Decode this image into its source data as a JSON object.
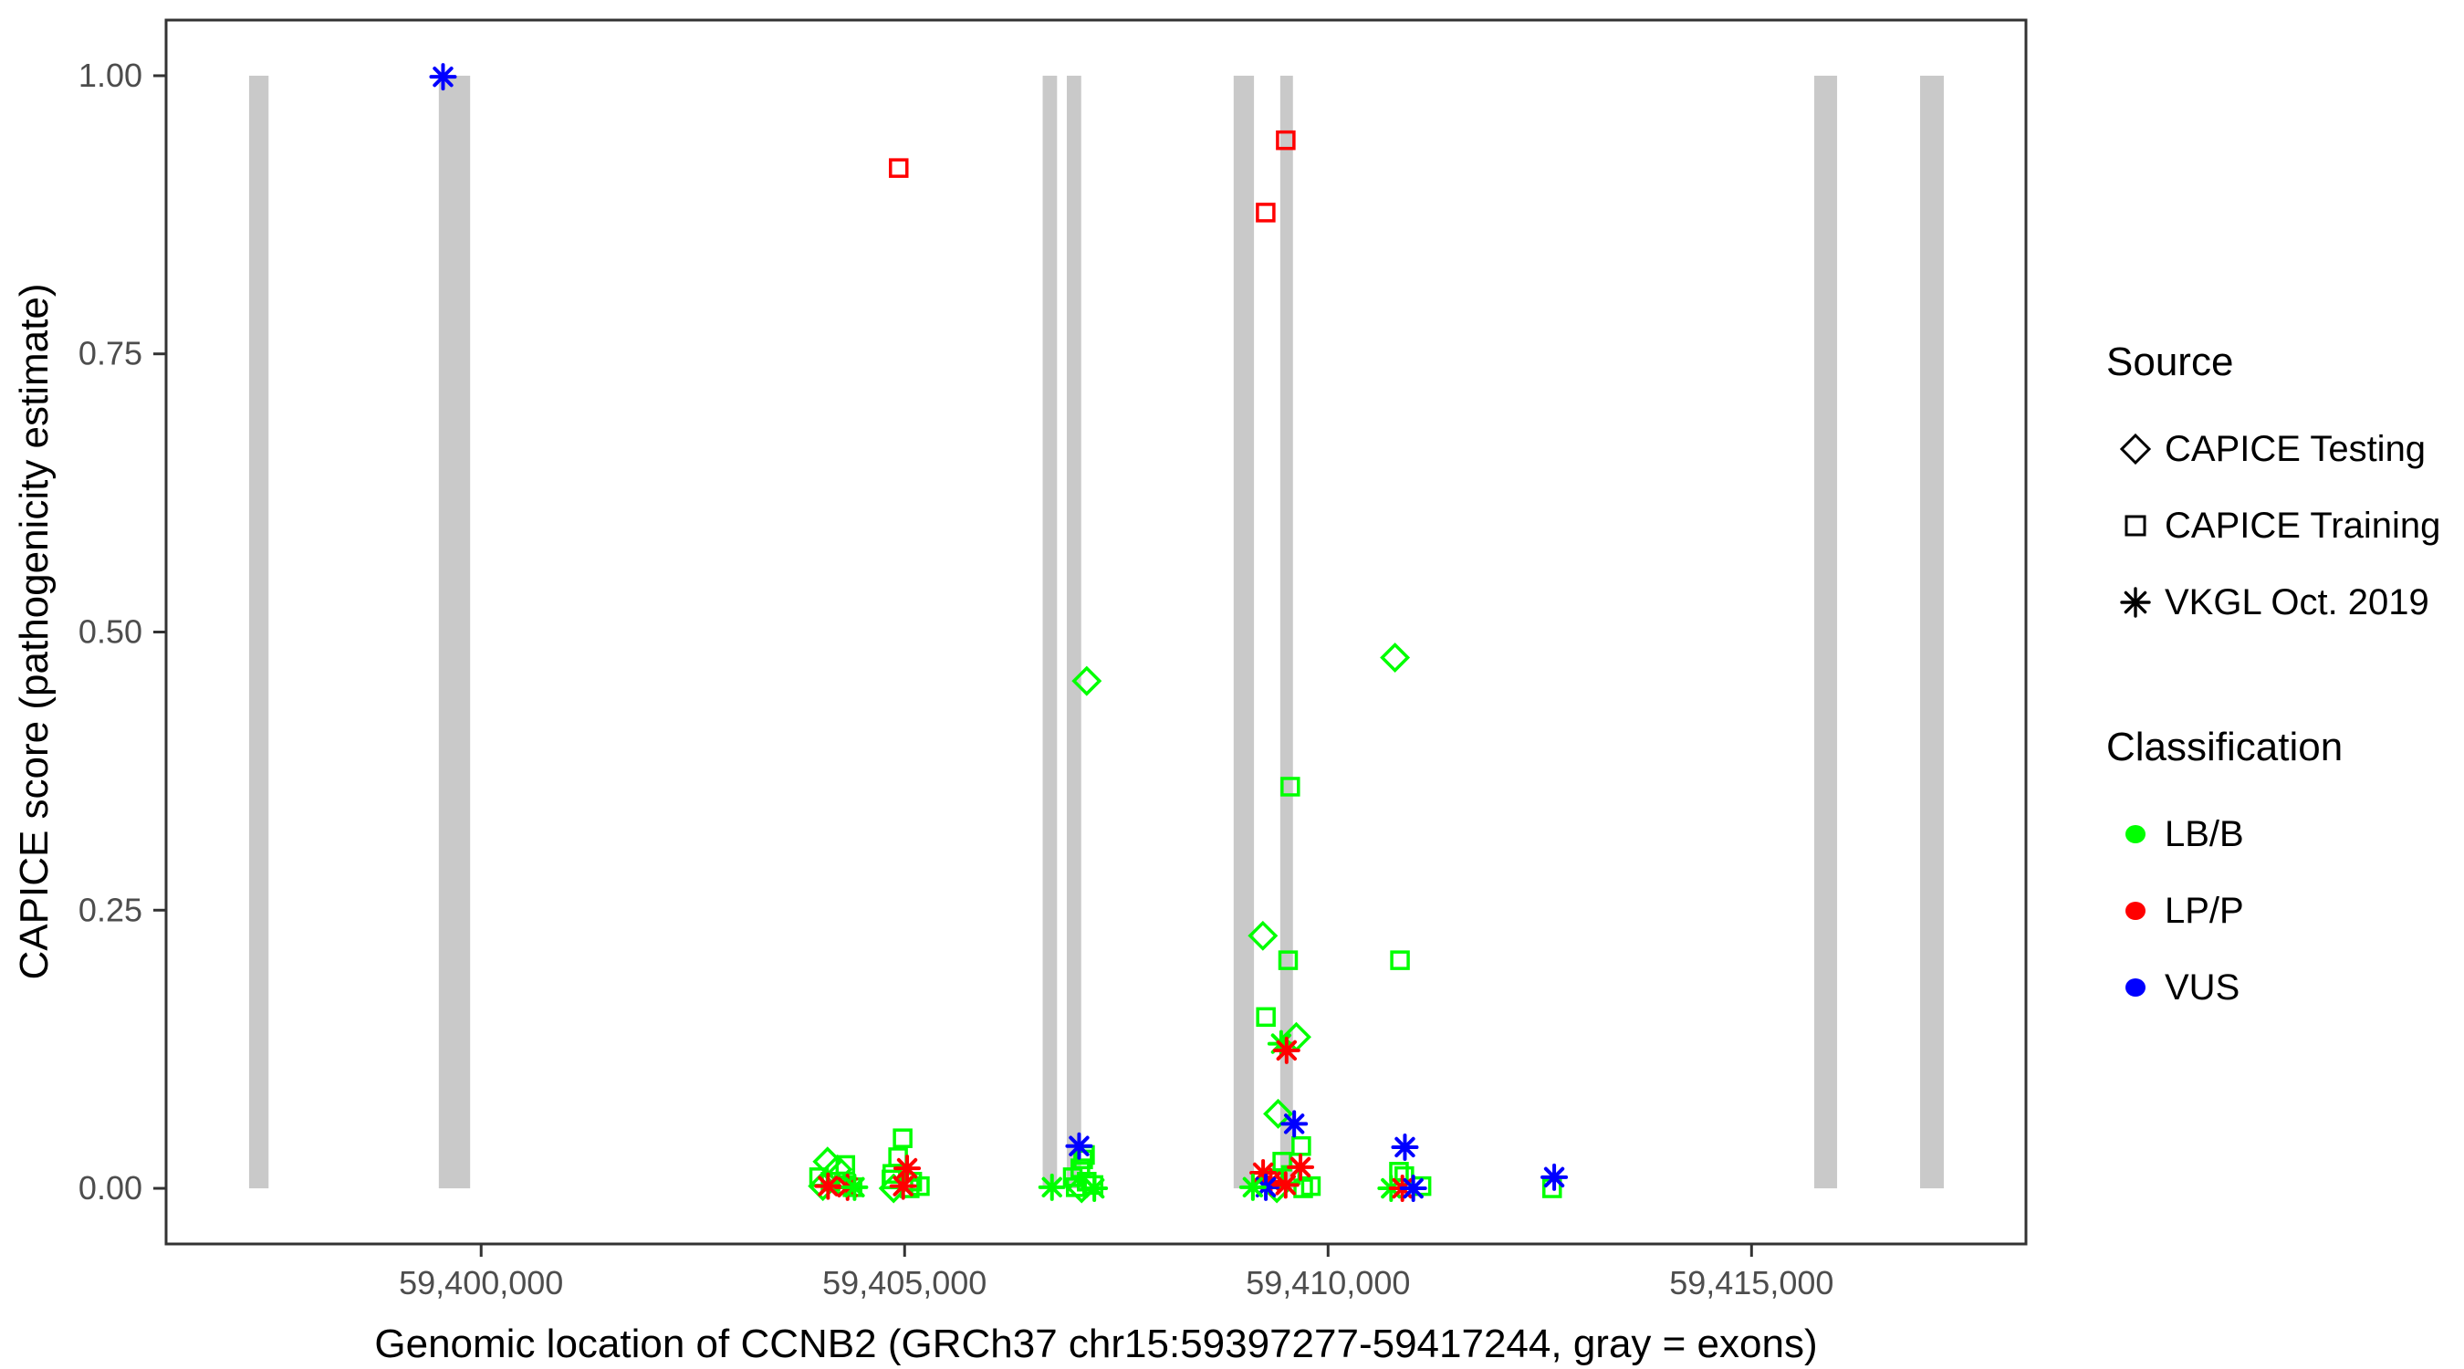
{
  "chart_data": {
    "type": "scatter",
    "title": "",
    "xlabel": "Genomic location of CCNB2 (GRCh37 chr15:59397277-59417244, gray = exons)",
    "ylabel": "CAPICE score (pathogenicity estimate)",
    "xlim": [
      59396280,
      59418240
    ],
    "ylim": [
      -0.05,
      1.05
    ],
    "grid": false,
    "legend_position": "right",
    "x_ticks": [
      {
        "value": 59400000,
        "label": "59,400,000"
      },
      {
        "value": 59405000,
        "label": "59,405,000"
      },
      {
        "value": 59410000,
        "label": "59,410,000"
      },
      {
        "value": 59415000,
        "label": "59,415,000"
      }
    ],
    "y_ticks": [
      {
        "value": 0.0,
        "label": "0.00"
      },
      {
        "value": 0.25,
        "label": "0.25"
      },
      {
        "value": 0.5,
        "label": "0.50"
      },
      {
        "value": 0.75,
        "label": "0.75"
      },
      {
        "value": 1.0,
        "label": "1.00"
      }
    ],
    "exons_note": "gray vertical bars = exons, drawn from score 0 to 1",
    "exons": [
      [
        59397260,
        59397490
      ],
      [
        59399500,
        59399870
      ],
      [
        59406630,
        59406800
      ],
      [
        59406915,
        59407085
      ],
      [
        59408885,
        59409125
      ],
      [
        59409435,
        59409585
      ],
      [
        59415740,
        59416010
      ],
      [
        59416990,
        59417270
      ]
    ],
    "shape_by_source": {
      "testing": "diamond",
      "training": "square",
      "vkgl": "asterisk"
    },
    "points": [
      [
        59399550,
        0.999,
        "vkgl",
        "vus"
      ],
      [
        59404930,
        0.917,
        "training",
        "lpp"
      ],
      [
        59409500,
        0.942,
        "training",
        "lpp"
      ],
      [
        59409263,
        0.877,
        "training",
        "lpp"
      ],
      [
        59410790,
        0.477,
        "testing",
        "lbb"
      ],
      [
        59407150,
        0.456,
        "testing",
        "lbb"
      ],
      [
        59409553,
        0.361,
        "training",
        "lbb"
      ],
      [
        59409230,
        0.227,
        "testing",
        "lbb"
      ],
      [
        59409528,
        0.205,
        "training",
        "lbb"
      ],
      [
        59410849,
        0.205,
        "training",
        "lbb"
      ],
      [
        59409266,
        0.154,
        "training",
        "lbb"
      ],
      [
        59409625,
        0.136,
        "testing",
        "lbb"
      ],
      [
        59409446,
        0.13,
        "vkgl",
        "lbb"
      ],
      [
        59409510,
        0.124,
        "vkgl",
        "lpp"
      ],
      [
        59409410,
        0.067,
        "testing",
        "lbb"
      ],
      [
        59409600,
        0.058,
        "vkgl",
        "vus"
      ],
      [
        59409683,
        0.038,
        "training",
        "lbb"
      ],
      [
        59410907,
        0.037,
        "vkgl",
        "vus"
      ],
      [
        59404090,
        0.024,
        "testing",
        "lbb"
      ],
      [
        59404300,
        0.021,
        "training",
        "lbb"
      ],
      [
        59404208,
        0.017,
        "testing",
        "lbb"
      ],
      [
        59403990,
        0.01,
        "training",
        "lbb"
      ],
      [
        59404125,
        0.006,
        "training",
        "lbb"
      ],
      [
        59404283,
        0.003,
        "training",
        "lbb"
      ],
      [
        59404385,
        0.001,
        "training",
        "lbb"
      ],
      [
        59404035,
        0.002,
        "testing",
        "lbb"
      ],
      [
        59404096,
        0.002,
        "vkgl",
        "lpp"
      ],
      [
        59404326,
        0.001,
        "vkgl",
        "lpp"
      ],
      [
        59404409,
        0.001,
        "vkgl",
        "lbb"
      ],
      [
        59404977,
        0.045,
        "training",
        "lbb"
      ],
      [
        59404923,
        0.028,
        "training",
        "lbb"
      ],
      [
        59405030,
        0.018,
        "vkgl",
        "lpp"
      ],
      [
        59404855,
        0.013,
        "training",
        "lbb"
      ],
      [
        59404845,
        0.008,
        "training",
        "lbb"
      ],
      [
        59405090,
        0.006,
        "training",
        "lbb"
      ],
      [
        59405180,
        0.002,
        "training",
        "lbb"
      ],
      [
        59404983,
        0.002,
        "vkgl",
        "lpp"
      ],
      [
        59404870,
        0.0,
        "testing",
        "lbb"
      ],
      [
        59405060,
        0.0,
        "training",
        "lbb"
      ],
      [
        59406740,
        0.001,
        "vkgl",
        "lbb"
      ],
      [
        59407060,
        0.038,
        "vkgl",
        "vus"
      ],
      [
        59407130,
        0.03,
        "training",
        "lbb"
      ],
      [
        59407108,
        0.026,
        "training",
        "lbb"
      ],
      [
        59407075,
        0.018,
        "training",
        "lbb"
      ],
      [
        59406985,
        0.01,
        "training",
        "lbb"
      ],
      [
        59407150,
        0.006,
        "training",
        "lbb"
      ],
      [
        59407230,
        0.003,
        "training",
        "lbb"
      ],
      [
        59407020,
        0.001,
        "training",
        "lbb"
      ],
      [
        59407240,
        0.0,
        "vkgl",
        "lbb"
      ],
      [
        59407090,
        0.0,
        "testing",
        "lbb"
      ],
      [
        59409459,
        0.024,
        "training",
        "lbb"
      ],
      [
        59409674,
        0.019,
        "vkgl",
        "lpp"
      ],
      [
        59409233,
        0.014,
        "vkgl",
        "lpp"
      ],
      [
        59409323,
        0.006,
        "vkgl",
        "lpp"
      ],
      [
        59409265,
        0.001,
        "vkgl",
        "vus"
      ],
      [
        59409499,
        0.003,
        "vkgl",
        "lpp"
      ],
      [
        59409797,
        0.002,
        "training",
        "lbb"
      ],
      [
        59409706,
        0.0,
        "training",
        "lbb"
      ],
      [
        59409112,
        0.001,
        "vkgl",
        "lbb"
      ],
      [
        59409360,
        0.008,
        "training",
        "lbb"
      ],
      [
        59409560,
        0.012,
        "training",
        "lbb"
      ],
      [
        59409395,
        0.0,
        "testing",
        "lbb"
      ],
      [
        59410837,
        0.015,
        "training",
        "lbb"
      ],
      [
        59410900,
        0.011,
        "training",
        "lbb"
      ],
      [
        59410744,
        0.0,
        "vkgl",
        "lbb"
      ],
      [
        59410877,
        0.0,
        "vkgl",
        "lpp"
      ],
      [
        59411006,
        0.0,
        "vkgl",
        "vus"
      ],
      [
        59411103,
        0.002,
        "training",
        "lbb"
      ],
      [
        59412670,
        0.01,
        "vkgl",
        "vus"
      ],
      [
        59412645,
        0.0,
        "training",
        "lbb"
      ]
    ]
  },
  "legend": {
    "source": {
      "title": "Source",
      "items": [
        {
          "shape": "diamond",
          "label": "CAPICE Testing"
        },
        {
          "shape": "square",
          "label": "CAPICE Training"
        },
        {
          "shape": "asterisk",
          "label": "VKGL Oct. 2019"
        }
      ]
    },
    "classification": {
      "title": "Classification",
      "items": [
        {
          "key": "lbb",
          "label": "LB/B"
        },
        {
          "key": "lpp",
          "label": "LP/P"
        },
        {
          "key": "vus",
          "label": "VUS"
        }
      ]
    }
  },
  "colors": {
    "lbb": "#00ff00",
    "lpp": "#ff0000",
    "vus": "#0000ff",
    "exon": "#c9c9c9",
    "axis_text": "#4d4d4d",
    "axis_line": "#333333",
    "legend_symbol": "#000000"
  }
}
